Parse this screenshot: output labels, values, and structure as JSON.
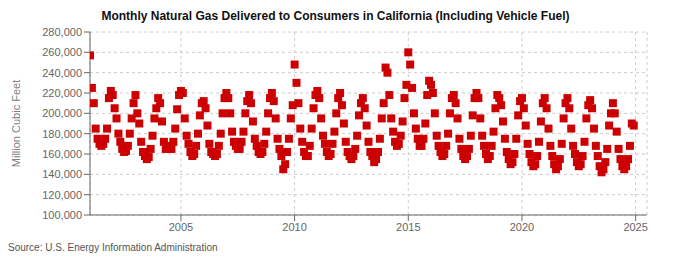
{
  "chart_data": {
    "type": "scatter",
    "title": "Monthly Natural Gas Delivered to Consumers in California (Including Vehicle Fuel)",
    "ylabel": "Million Cubic Feet",
    "annotations": [
      "Source: U.S. Energy Information Administration"
    ],
    "color": "#CC0000",
    "marker": "square",
    "grid": true,
    "xlim": [
      2001.0,
      2025.5
    ],
    "xticks": [
      2005,
      2010,
      2015,
      2020,
      2025
    ],
    "ylim": [
      100000,
      280000
    ],
    "yticks": [
      {
        "value": 100000,
        "label": "100,000"
      },
      {
        "value": 120000,
        "label": "120,000"
      },
      {
        "value": 140000,
        "label": "140,000"
      },
      {
        "value": 160000,
        "label": "160,000"
      },
      {
        "value": 180000,
        "label": "180,000"
      },
      {
        "value": 200000,
        "label": "200,000"
      },
      {
        "value": 220000,
        "label": "220,000"
      },
      {
        "value": 240000,
        "label": "240,000"
      },
      {
        "value": 260000,
        "label": "260,000"
      },
      {
        "value": 280000,
        "label": "280,000"
      }
    ],
    "x": [
      2001.0,
      2001.083,
      2001.167,
      2001.25,
      2001.333,
      2001.417,
      2001.5,
      2001.583,
      2001.667,
      2001.75,
      2001.833,
      2001.917,
      2002.0,
      2002.083,
      2002.167,
      2002.25,
      2002.333,
      2002.417,
      2002.5,
      2002.583,
      2002.667,
      2002.75,
      2002.833,
      2002.917,
      2003.0,
      2003.083,
      2003.167,
      2003.25,
      2003.333,
      2003.417,
      2003.5,
      2003.583,
      2003.667,
      2003.75,
      2003.833,
      2003.917,
      2004.0,
      2004.083,
      2004.167,
      2004.25,
      2004.333,
      2004.417,
      2004.5,
      2004.583,
      2004.667,
      2004.75,
      2004.833,
      2004.917,
      2005.0,
      2005.083,
      2005.167,
      2005.25,
      2005.333,
      2005.417,
      2005.5,
      2005.583,
      2005.667,
      2005.75,
      2005.833,
      2005.917,
      2006.0,
      2006.083,
      2006.167,
      2006.25,
      2006.333,
      2006.417,
      2006.5,
      2006.583,
      2006.667,
      2006.75,
      2006.833,
      2006.917,
      2007.0,
      2007.083,
      2007.167,
      2007.25,
      2007.333,
      2007.417,
      2007.5,
      2007.583,
      2007.667,
      2007.75,
      2007.833,
      2007.917,
      2008.0,
      2008.083,
      2008.167,
      2008.25,
      2008.333,
      2008.417,
      2008.5,
      2008.583,
      2008.667,
      2008.75,
      2008.833,
      2008.917,
      2009.0,
      2009.083,
      2009.167,
      2009.25,
      2009.333,
      2009.417,
      2009.5,
      2009.583,
      2009.667,
      2009.75,
      2009.833,
      2009.917,
      2010.0,
      2010.083,
      2010.167,
      2010.25,
      2010.333,
      2010.417,
      2010.5,
      2010.583,
      2010.667,
      2010.75,
      2010.833,
      2010.917,
      2011.0,
      2011.083,
      2011.167,
      2011.25,
      2011.333,
      2011.417,
      2011.5,
      2011.583,
      2011.667,
      2011.75,
      2011.833,
      2011.917,
      2012.0,
      2012.083,
      2012.167,
      2012.25,
      2012.333,
      2012.417,
      2012.5,
      2012.583,
      2012.667,
      2012.75,
      2012.833,
      2012.917,
      2013.0,
      2013.083,
      2013.167,
      2013.25,
      2013.333,
      2013.417,
      2013.5,
      2013.583,
      2013.667,
      2013.75,
      2013.833,
      2013.917,
      2014.0,
      2014.083,
      2014.167,
      2014.25,
      2014.333,
      2014.417,
      2014.5,
      2014.583,
      2014.667,
      2014.75,
      2014.833,
      2014.917,
      2015.0,
      2015.083,
      2015.167,
      2015.25,
      2015.333,
      2015.417,
      2015.5,
      2015.583,
      2015.667,
      2015.75,
      2015.833,
      2015.917,
      2016.0,
      2016.083,
      2016.167,
      2016.25,
      2016.333,
      2016.417,
      2016.5,
      2016.583,
      2016.667,
      2016.75,
      2016.833,
      2016.917,
      2017.0,
      2017.083,
      2017.167,
      2017.25,
      2017.333,
      2017.417,
      2017.5,
      2017.583,
      2017.667,
      2017.75,
      2017.833,
      2017.917,
      2018.0,
      2018.083,
      2018.167,
      2018.25,
      2018.333,
      2018.417,
      2018.5,
      2018.583,
      2018.667,
      2018.75,
      2018.833,
      2018.917,
      2019.0,
      2019.083,
      2019.167,
      2019.25,
      2019.333,
      2019.417,
      2019.5,
      2019.583,
      2019.667,
      2019.75,
      2019.833,
      2019.917,
      2020.0,
      2020.083,
      2020.167,
      2020.25,
      2020.333,
      2020.417,
      2020.5,
      2020.583,
      2020.667,
      2020.75,
      2020.833,
      2020.917,
      2021.0,
      2021.083,
      2021.167,
      2021.25,
      2021.333,
      2021.417,
      2021.5,
      2021.583,
      2021.667,
      2021.75,
      2021.833,
      2021.917,
      2022.0,
      2022.083,
      2022.167,
      2022.25,
      2022.333,
      2022.417,
      2022.5,
      2022.583,
      2022.667,
      2022.75,
      2022.833,
      2022.917,
      2023.0,
      2023.083,
      2023.167,
      2023.25,
      2023.333,
      2023.417,
      2023.5,
      2023.583,
      2023.667,
      2023.75,
      2023.833,
      2023.917,
      2024.0,
      2024.083,
      2024.167,
      2024.25,
      2024.333,
      2024.417,
      2024.5,
      2024.583,
      2024.667,
      2024.75,
      2024.833,
      2024.917
    ],
    "values": [
      257000,
      225000,
      210000,
      185000,
      175000,
      170000,
      168000,
      170000,
      175000,
      185000,
      215000,
      222000,
      218000,
      205000,
      195000,
      180000,
      172000,
      165000,
      162000,
      163000,
      168000,
      180000,
      195000,
      210000,
      218000,
      200000,
      190000,
      172000,
      162000,
      158000,
      155000,
      157000,
      165000,
      178000,
      195000,
      205000,
      215000,
      210000,
      192000,
      172000,
      165000,
      168000,
      165000,
      165000,
      172000,
      185000,
      204000,
      218000,
      222000,
      220000,
      195000,
      178000,
      170000,
      162000,
      158000,
      160000,
      168000,
      180000,
      198000,
      210000,
      212000,
      205000,
      188000,
      170000,
      162000,
      160000,
      158000,
      160000,
      168000,
      180000,
      200000,
      215000,
      220000,
      215000,
      200000,
      182000,
      172000,
      168000,
      165000,
      165000,
      172000,
      182000,
      200000,
      212000,
      218000,
      210000,
      192000,
      175000,
      168000,
      162000,
      160000,
      162000,
      170000,
      182000,
      200000,
      215000,
      220000,
      212000,
      195000,
      175000,
      165000,
      158000,
      145000,
      150000,
      162000,
      175000,
      195000,
      208000,
      248000,
      230000,
      210000,
      185000,
      172000,
      162000,
      158000,
      158000,
      168000,
      185000,
      205000,
      218000,
      222000,
      215000,
      195000,
      178000,
      170000,
      162000,
      158000,
      160000,
      170000,
      182000,
      200000,
      215000,
      220000,
      208000,
      190000,
      172000,
      162000,
      158000,
      155000,
      158000,
      165000,
      178000,
      198000,
      210000,
      215000,
      205000,
      188000,
      172000,
      162000,
      158000,
      152000,
      155000,
      162000,
      175000,
      195000,
      210000,
      245000,
      240000,
      218000,
      195000,
      182000,
      172000,
      168000,
      170000,
      178000,
      192000,
      215000,
      228000,
      260000,
      248000,
      225000,
      200000,
      185000,
      175000,
      168000,
      168000,
      175000,
      190000,
      218000,
      232000,
      228000,
      220000,
      200000,
      178000,
      168000,
      162000,
      158000,
      160000,
      168000,
      180000,
      200000,
      215000,
      218000,
      210000,
      195000,
      175000,
      165000,
      158000,
      155000,
      158000,
      165000,
      178000,
      198000,
      215000,
      220000,
      215000,
      195000,
      178000,
      168000,
      160000,
      155000,
      158000,
      168000,
      182000,
      205000,
      218000,
      215000,
      208000,
      192000,
      175000,
      162000,
      155000,
      150000,
      152000,
      160000,
      175000,
      198000,
      212000,
      215000,
      205000,
      188000,
      170000,
      160000,
      152000,
      148000,
      150000,
      158000,
      172000,
      192000,
      210000,
      215000,
      205000,
      185000,
      168000,
      158000,
      150000,
      145000,
      148000,
      155000,
      170000,
      195000,
      210000,
      215000,
      205000,
      185000,
      168000,
      160000,
      152000,
      148000,
      150000,
      158000,
      172000,
      195000,
      208000,
      213000,
      205000,
      185000,
      168000,
      158000,
      148000,
      142000,
      145000,
      152000,
      165000,
      188000,
      200000,
      210000,
      200000,
      182000,
      165000,
      155000,
      148000,
      145000,
      148000,
      155000,
      168000,
      190000,
      188000
    ]
  }
}
